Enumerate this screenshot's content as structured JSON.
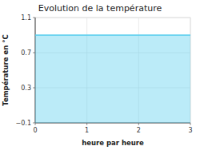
{
  "chart_data": {
    "type": "area",
    "title": "Evolution de la température",
    "x_label": "heure par heure",
    "y_label": "Température en °C",
    "x": [
      0,
      3
    ],
    "values": [
      0.9,
      0.9
    ],
    "color": "#55ccee",
    "xlim": [
      0,
      3
    ],
    "ylim": [
      -0.1,
      1.1
    ],
    "xticks": [
      0,
      1,
      2,
      3
    ],
    "yticks": [
      {
        "value": -0.1,
        "label": "−0.1"
      },
      0.3,
      0.7,
      {
        "value": 1.1,
        "label": "1.1"
      }
    ],
    "grid": true
  }
}
